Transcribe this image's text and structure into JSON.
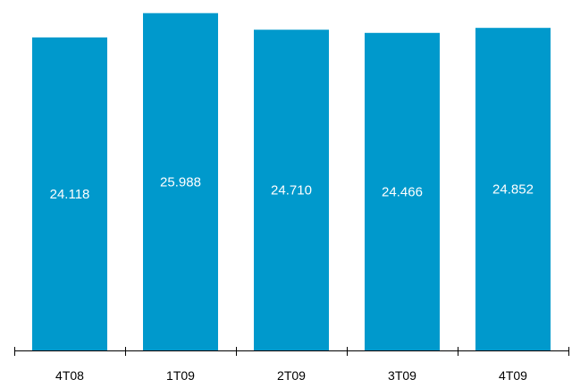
{
  "chart_data": {
    "type": "bar",
    "title": "",
    "xlabel": "",
    "ylabel": "",
    "categories": [
      "4T08",
      "1T09",
      "2T09",
      "3T09",
      "4T09"
    ],
    "values": [
      24118,
      25988,
      24710,
      24466,
      24852
    ],
    "value_labels": [
      "24.118",
      "25.988",
      "24.710",
      "24.466",
      "24.852"
    ],
    "ylim": [
      0,
      27000
    ],
    "grid": false,
    "legend": "none",
    "colors": {
      "bar": "#0099cc",
      "bar_label": "#ffffff",
      "axis": "#000000"
    }
  }
}
